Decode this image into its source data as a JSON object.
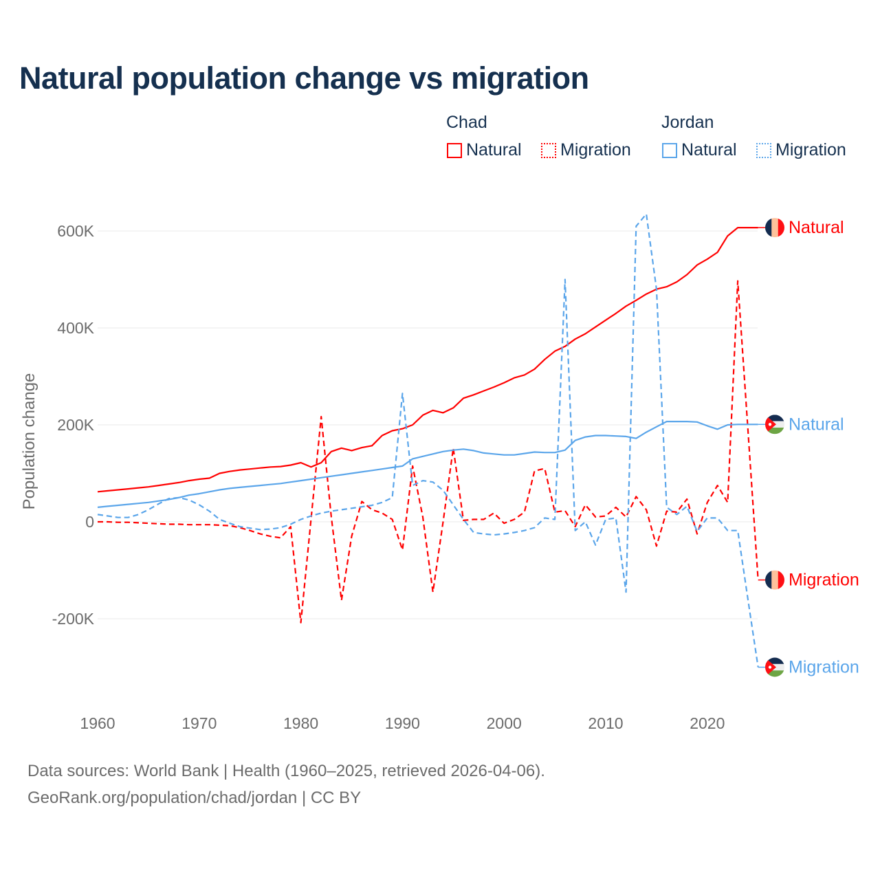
{
  "title": "Natural population change vs migration",
  "legend": {
    "groups": [
      {
        "name": "Chad",
        "items": [
          "Natural",
          "Migration"
        ]
      },
      {
        "name": "Jordan",
        "items": [
          "Natural",
          "Migration"
        ]
      }
    ]
  },
  "colors": {
    "chad": "#ff0000",
    "jordan": "#5aa5ea",
    "text": "#15304f",
    "axis": "#6b6b6b",
    "grid": "#e8e8e8"
  },
  "footer": {
    "line1": "Data sources: World Bank | Health (1960–2025, retrieved 2026-04-06).",
    "line2": "GeoRank.org/population/chad/jordan | CC BY"
  },
  "chart_data": {
    "type": "line",
    "title": "Natural population change vs migration",
    "xlabel": "",
    "ylabel": "Population change",
    "x_start": 1960,
    "x_end": 2025,
    "xlim": [
      1960,
      2025
    ],
    "ylim": [
      -300000,
      640000
    ],
    "x_ticks": [
      1960,
      1970,
      1980,
      1990,
      2000,
      2010,
      2020
    ],
    "y_ticks": [
      -200000,
      0,
      200000,
      400000,
      600000
    ],
    "y_tick_labels": [
      "-200K",
      "0",
      "200K",
      "400K",
      "600K"
    ],
    "grid": true,
    "legend_position": "top-right",
    "series": [
      {
        "name": "Chad Natural",
        "country": "Chad",
        "kind": "Natural",
        "color": "#ff0000",
        "dash": false,
        "end_label": "Natural",
        "values_k": [
          62,
          64,
          66,
          68,
          70,
          72,
          75,
          78,
          81,
          85,
          88,
          90,
          100,
          104,
          107,
          109,
          111,
          113,
          114,
          117,
          122,
          113,
          122,
          145,
          152,
          147,
          153,
          157,
          178,
          188,
          192,
          200,
          220,
          230,
          225,
          235,
          255,
          262,
          270,
          278,
          287,
          297,
          303,
          315,
          335,
          352,
          362,
          377,
          388,
          402,
          416,
          430,
          445,
          457,
          470,
          480,
          485,
          495,
          510,
          530,
          542,
          556,
          590,
          607,
          607,
          607
        ]
      },
      {
        "name": "Chad Migration",
        "country": "Chad",
        "kind": "Migration",
        "color": "#ff0000",
        "dash": true,
        "end_label": "Migration",
        "values_k": [
          0,
          0,
          -1,
          -1,
          -2,
          -3,
          -4,
          -5,
          -5,
          -6,
          -6,
          -6,
          -7,
          -8,
          -12,
          -18,
          -25,
          -30,
          -33,
          -10,
          -208,
          5,
          217,
          10,
          -162,
          -30,
          42,
          25,
          18,
          5,
          -58,
          115,
          10,
          -145,
          0,
          152,
          3,
          5,
          5,
          18,
          -3,
          5,
          20,
          105,
          110,
          20,
          23,
          -10,
          35,
          10,
          12,
          30,
          10,
          52,
          25,
          -50,
          22,
          20,
          47,
          -25,
          40,
          75,
          40,
          497,
          190,
          -120
        ]
      },
      {
        "name": "Jordan Natural",
        "country": "Jordan",
        "kind": "Natural",
        "color": "#5aa5ea",
        "dash": false,
        "end_label": "Natural",
        "values_k": [
          30,
          32,
          34,
          36,
          38,
          40,
          43,
          46,
          50,
          55,
          58,
          62,
          66,
          69,
          71,
          73,
          75,
          77,
          79,
          82,
          85,
          88,
          91,
          94,
          97,
          100,
          103,
          106,
          109,
          112,
          115,
          130,
          135,
          140,
          145,
          148,
          150,
          147,
          142,
          140,
          138,
          138,
          141,
          144,
          143,
          143,
          148,
          168,
          175,
          178,
          178,
          177,
          176,
          172,
          185,
          196,
          207,
          207,
          207,
          206,
          198,
          191,
          200,
          201,
          201,
          201
        ]
      },
      {
        "name": "Jordan Migration",
        "country": "Jordan",
        "kind": "Migration",
        "color": "#5aa5ea",
        "dash": true,
        "end_label": "Migration",
        "values_k": [
          15,
          12,
          9,
          9,
          15,
          25,
          37,
          48,
          50,
          45,
          35,
          22,
          5,
          -3,
          -10,
          -13,
          -16,
          -15,
          -12,
          -5,
          5,
          12,
          18,
          22,
          25,
          28,
          31,
          34,
          40,
          50,
          265,
          75,
          85,
          82,
          65,
          35,
          5,
          -22,
          -25,
          -27,
          -25,
          -22,
          -18,
          -12,
          8,
          5,
          500,
          -18,
          0,
          -48,
          5,
          8,
          -145,
          610,
          635,
          480,
          30,
          15,
          32,
          -20,
          8,
          8,
          -18,
          -18,
          -160,
          -300
        ]
      }
    ]
  }
}
